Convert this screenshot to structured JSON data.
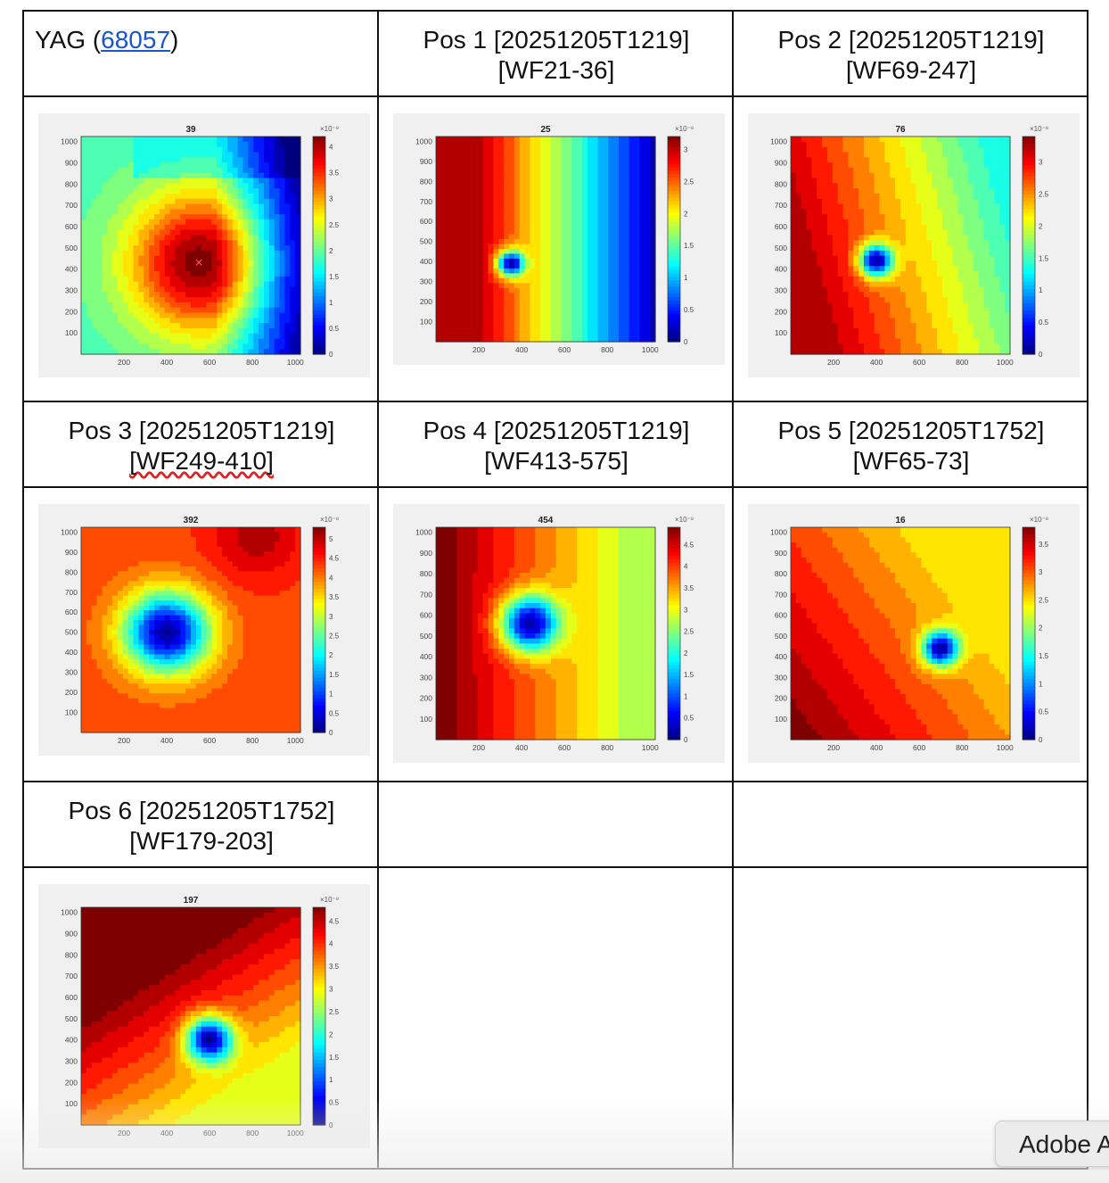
{
  "headers": {
    "yag": {
      "prefix": "YAG  (",
      "link": "68057",
      "suffix": ")"
    },
    "pos1": {
      "line1": "Pos 1  [20251205T1219]",
      "line2": "[WF21-36]"
    },
    "pos2": {
      "line1": "Pos 2 [20251205T1219]",
      "line2": "[WF69-247]"
    },
    "pos3": {
      "line1": "Pos 3 [20251205T1219]",
      "line2": "[WF249-410]"
    },
    "pos4": {
      "line1": "Pos 4  [20251205T1219]",
      "line2": "[WF413-575]"
    },
    "pos5": {
      "line1": "Pos 5  [20251205T1752]",
      "line2": "[WF65-73]"
    },
    "pos6": {
      "line1": "Pos 6 [20251205T1752]",
      "line2": "[WF179-203]"
    }
  },
  "popup": {
    "label": "Adobe A"
  },
  "chart_data": [
    {
      "type": "heatmap",
      "title": "39",
      "feature": "peak",
      "spot": [
        550,
        430
      ],
      "colorbar_exponent": "×10⁻⁸",
      "clim": [
        0,
        4.2
      ],
      "cticks": [
        "0",
        "0.5",
        "1",
        "1.5",
        "2",
        "2.5",
        "3",
        "3.5",
        "4"
      ],
      "xticks": [
        "200",
        "400",
        "600",
        "800",
        "1000"
      ],
      "yticks": [
        "100",
        "200",
        "300",
        "400",
        "500",
        "600",
        "700",
        "800",
        "900",
        "1000"
      ],
      "xlim": [
        0,
        1024
      ],
      "ylim": [
        0,
        1024
      ]
    },
    {
      "type": "heatmap",
      "title": "25",
      "feature": "hole",
      "spot": [
        350,
        390
      ],
      "colorbar_exponent": "×10⁻⁸",
      "clim": [
        0,
        3.2
      ],
      "cticks": [
        "0",
        "0.5",
        "1",
        "1.5",
        "2",
        "2.5",
        "3"
      ],
      "xticks": [
        "200",
        "400",
        "600",
        "800",
        "1000"
      ],
      "yticks": [
        "100",
        "200",
        "300",
        "400",
        "500",
        "600",
        "700",
        "800",
        "900",
        "1000"
      ],
      "xlim": [
        0,
        1024
      ],
      "ylim": [
        0,
        1024
      ]
    },
    {
      "type": "heatmap",
      "title": "76",
      "feature": "hole",
      "spot": [
        400,
        440
      ],
      "colorbar_exponent": "×10⁻⁸",
      "clim": [
        0,
        3.4
      ],
      "cticks": [
        "0",
        "0.5",
        "1",
        "1.5",
        "2",
        "2.5",
        "3"
      ],
      "xticks": [
        "200",
        "400",
        "600",
        "800",
        "1000"
      ],
      "yticks": [
        "100",
        "200",
        "300",
        "400",
        "500",
        "600",
        "700",
        "800",
        "900",
        "1000"
      ],
      "xlim": [
        0,
        1024
      ],
      "ylim": [
        0,
        1024
      ]
    },
    {
      "type": "heatmap",
      "title": "392",
      "feature": "hole",
      "spot": [
        400,
        500
      ],
      "colorbar_exponent": "×10⁻⁸",
      "clim": [
        0,
        5.3
      ],
      "cticks": [
        "0",
        "0.5",
        "1",
        "1.5",
        "2",
        "2.5",
        "3",
        "3.5",
        "4",
        "4.5",
        "5"
      ],
      "xticks": [
        "200",
        "400",
        "600",
        "800",
        "1000"
      ],
      "yticks": [
        "100",
        "200",
        "300",
        "400",
        "500",
        "600",
        "700",
        "800",
        "900",
        "1000"
      ],
      "xlim": [
        0,
        1024
      ],
      "ylim": [
        0,
        1024
      ]
    },
    {
      "type": "heatmap",
      "title": "454",
      "feature": "hole",
      "spot": [
        440,
        560
      ],
      "colorbar_exponent": "×10⁻⁸",
      "clim": [
        0,
        4.9
      ],
      "cticks": [
        "0",
        "0.5",
        "1",
        "1.5",
        "2",
        "2.5",
        "3",
        "3.5",
        "4",
        "4.5"
      ],
      "xticks": [
        "200",
        "400",
        "600",
        "800",
        "1000"
      ],
      "yticks": [
        "100",
        "200",
        "300",
        "400",
        "500",
        "600",
        "700",
        "800",
        "900",
        "1000"
      ],
      "xlim": [
        0,
        1024
      ],
      "ylim": [
        0,
        1024
      ]
    },
    {
      "type": "heatmap",
      "title": "16",
      "feature": "hole",
      "spot": [
        700,
        440
      ],
      "colorbar_exponent": "×10⁻⁸",
      "clim": [
        0,
        3.8
      ],
      "cticks": [
        "0",
        "0.5",
        "1",
        "1.5",
        "2",
        "2.5",
        "3",
        "3.5"
      ],
      "xticks": [
        "200",
        "400",
        "600",
        "800",
        "1000"
      ],
      "yticks": [
        "100",
        "200",
        "300",
        "400",
        "500",
        "600",
        "700",
        "800",
        "900",
        "1000"
      ],
      "xlim": [
        0,
        1024
      ],
      "ylim": [
        0,
        1024
      ]
    },
    {
      "type": "heatmap",
      "title": "197",
      "feature": "hole",
      "spot": [
        600,
        400
      ],
      "colorbar_exponent": "×10⁻⁸",
      "clim": [
        0,
        4.8
      ],
      "cticks": [
        "0",
        "0.5",
        "1",
        "1.5",
        "2",
        "2.5",
        "3",
        "3.5",
        "4",
        "4.5"
      ],
      "xticks": [
        "200",
        "400",
        "600",
        "800",
        "1000"
      ],
      "yticks": [
        "100",
        "200",
        "300",
        "400",
        "500",
        "600",
        "700",
        "800",
        "900",
        "1000"
      ],
      "xlim": [
        0,
        1024
      ],
      "ylim": [
        0,
        1024
      ]
    }
  ]
}
